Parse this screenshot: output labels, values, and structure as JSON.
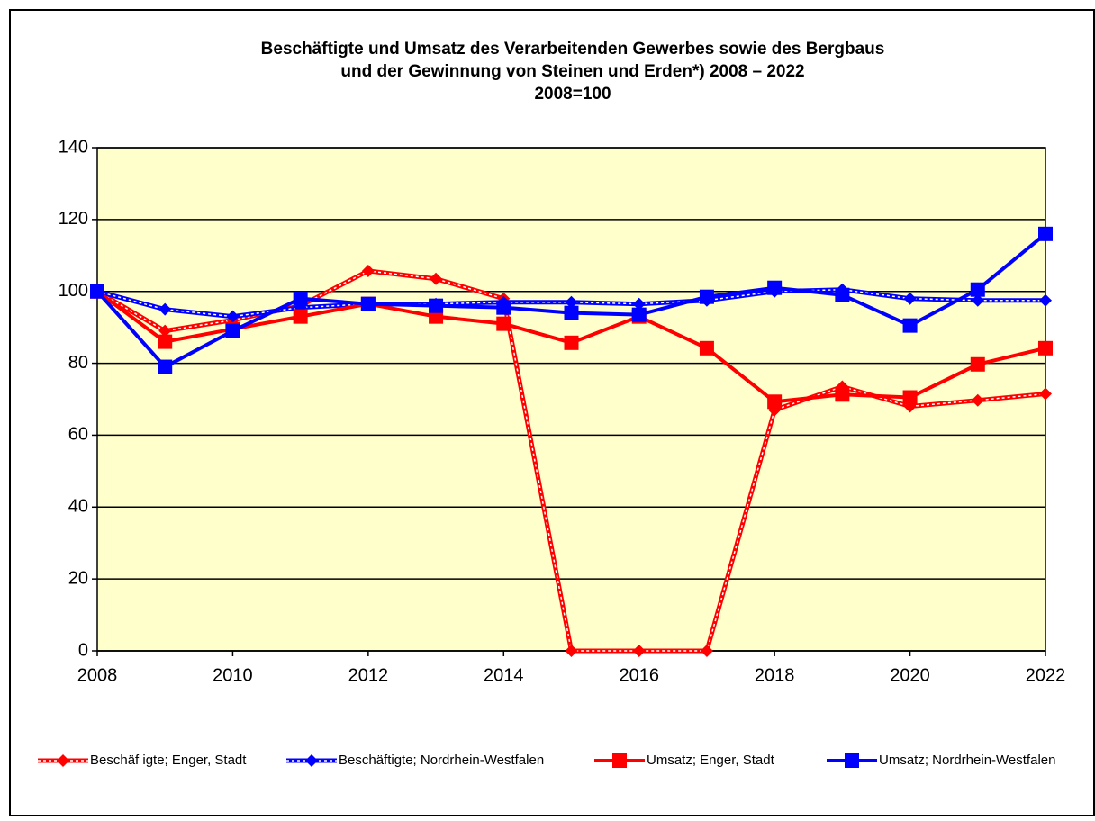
{
  "chart_data": {
    "type": "line",
    "title": [
      "Beschäftigte und Umsatz des Verarbeitenden Gewerbes sowie des Bergbaus",
      "und der Gewinnung von Steinen und Erden*) 2008 – 2022",
      "2008=100"
    ],
    "x": [
      2008,
      2009,
      2010,
      2011,
      2012,
      2013,
      2014,
      2015,
      2016,
      2017,
      2018,
      2019,
      2020,
      2021,
      2022
    ],
    "xlim": [
      2008,
      2022
    ],
    "xticks": [
      2008,
      2010,
      2012,
      2014,
      2016,
      2018,
      2020,
      2022
    ],
    "ylim": [
      0,
      140
    ],
    "yticks": [
      0,
      20,
      40,
      60,
      80,
      100,
      120,
      140
    ],
    "grid": true,
    "legend": "bottom",
    "series": [
      {
        "name": "Beschäf igte; Enger, Stadt",
        "color": "#ff0000",
        "marker": "diamond",
        "dashed": true,
        "values": [
          100,
          89,
          92,
          96,
          105.7,
          103.5,
          98,
          0,
          0,
          0,
          67,
          73.5,
          68,
          69.7,
          71.5
        ]
      },
      {
        "name": "Beschäftigte; Nordrhein-Westfalen",
        "color": "#0000ff",
        "marker": "diamond",
        "dashed": true,
        "values": [
          100,
          95,
          93,
          95.5,
          96.5,
          96.5,
          97,
          97,
          96.5,
          97.5,
          100,
          100.5,
          98,
          97.5,
          97.5
        ]
      },
      {
        "name": "Umsatz; Enger, Stadt",
        "color": "#ff0000",
        "marker": "square",
        "dashed": false,
        "values": [
          100,
          86,
          89.5,
          93,
          96.5,
          93,
          91,
          85.7,
          93,
          84.2,
          69.3,
          71.3,
          70.5,
          79.7,
          84.2
        ]
      },
      {
        "name": "Umsatz; Nordrhein-Westfalen",
        "color": "#0000ff",
        "marker": "square",
        "dashed": false,
        "values": [
          100,
          79,
          89,
          98,
          96.5,
          96,
          95.5,
          94,
          93.5,
          98.5,
          101,
          99,
          90.5,
          100.5,
          116
        ]
      }
    ]
  }
}
